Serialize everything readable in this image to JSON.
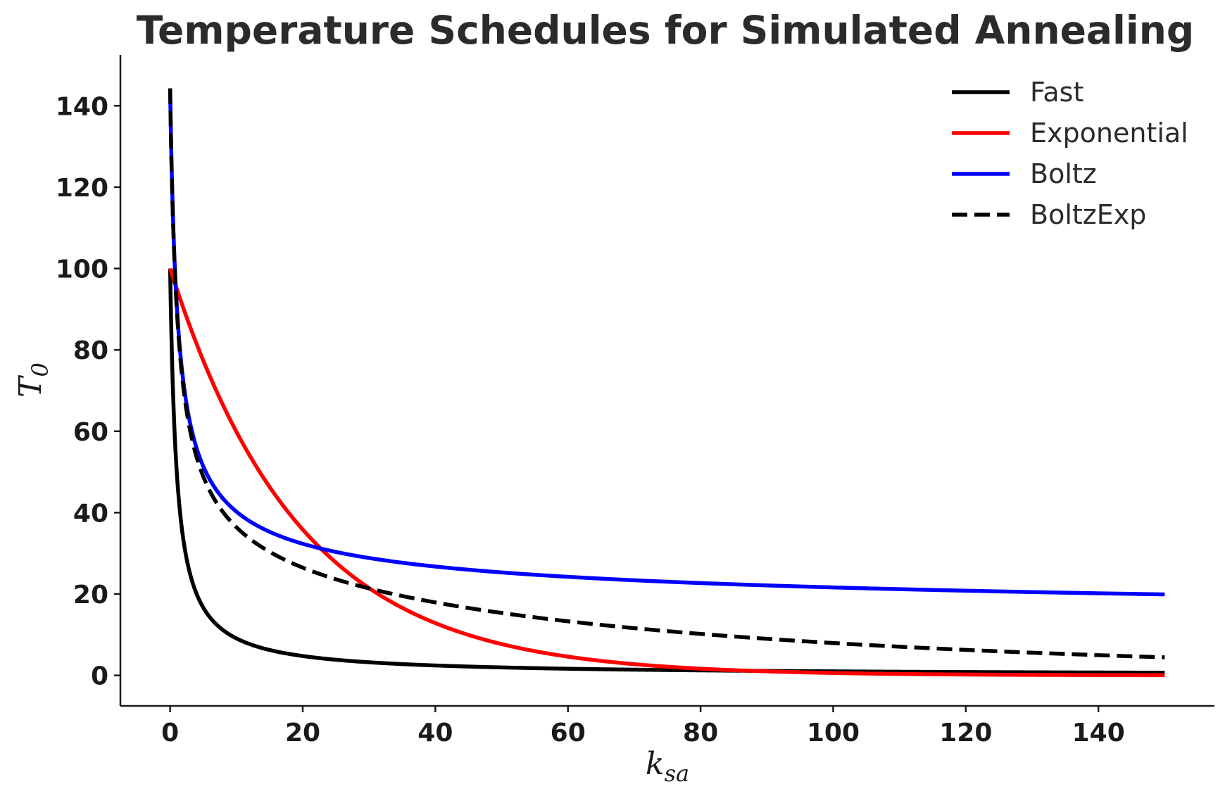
{
  "chart_data": {
    "type": "line",
    "title": "Temperature Schedules for Simulated Annealing",
    "xlabel": "k",
    "xlabel_sub": "sa",
    "ylabel": "T",
    "ylabel_sub": "0",
    "xlim": [
      -7.5,
      157.5
    ],
    "ylim": [
      -7.5,
      152.5
    ],
    "xticks": [
      0,
      20,
      40,
      60,
      80,
      100,
      120,
      140
    ],
    "yticks": [
      0,
      20,
      40,
      60,
      80,
      100,
      120,
      140
    ],
    "grid": false,
    "legend_position": "top-right",
    "x_range": [
      0,
      150
    ],
    "series": [
      {
        "name": "Fast",
        "color": "#000000",
        "dash": "solid",
        "formula": "fast",
        "T0": 100,
        "sample": {
          "x": [
            0,
            1,
            2,
            5,
            10,
            20,
            50,
            100,
            150
          ],
          "y": [
            100,
            50,
            33.3,
            16.7,
            9.1,
            4.8,
            2.0,
            1.0,
            0.66
          ]
        }
      },
      {
        "name": "Exponential",
        "color": "#ff0000",
        "dash": "solid",
        "formula": "exp",
        "T0": 100,
        "rate": 0.95,
        "sample": {
          "x": [
            0,
            10,
            20,
            30,
            40,
            60,
            80,
            100,
            150
          ],
          "y": [
            100,
            59.9,
            35.8,
            21.5,
            12.9,
            4.6,
            1.65,
            0.59,
            0.05
          ]
        }
      },
      {
        "name": "Boltz",
        "color": "#0000ff",
        "dash": "solid",
        "formula": "boltz",
        "T0": 100,
        "sample": {
          "x": [
            0,
            5,
            10,
            20,
            30,
            50,
            100,
            150
          ],
          "y": [
            144.3,
            55.8,
            41.7,
            32.8,
            29.1,
            25.4,
            21.7,
            19.9
          ]
        }
      },
      {
        "name": "BoltzExp",
        "color": "#000000",
        "dash": "dashed",
        "formula": "boltzexp",
        "T0": 100,
        "decay": 0.01,
        "sample": {
          "x": [
            0,
            5,
            10,
            20,
            30,
            50,
            100,
            150
          ],
          "y": [
            144.3,
            53.0,
            37.7,
            26.8,
            21.6,
            15.4,
            8.0,
            4.4
          ]
        }
      }
    ]
  }
}
